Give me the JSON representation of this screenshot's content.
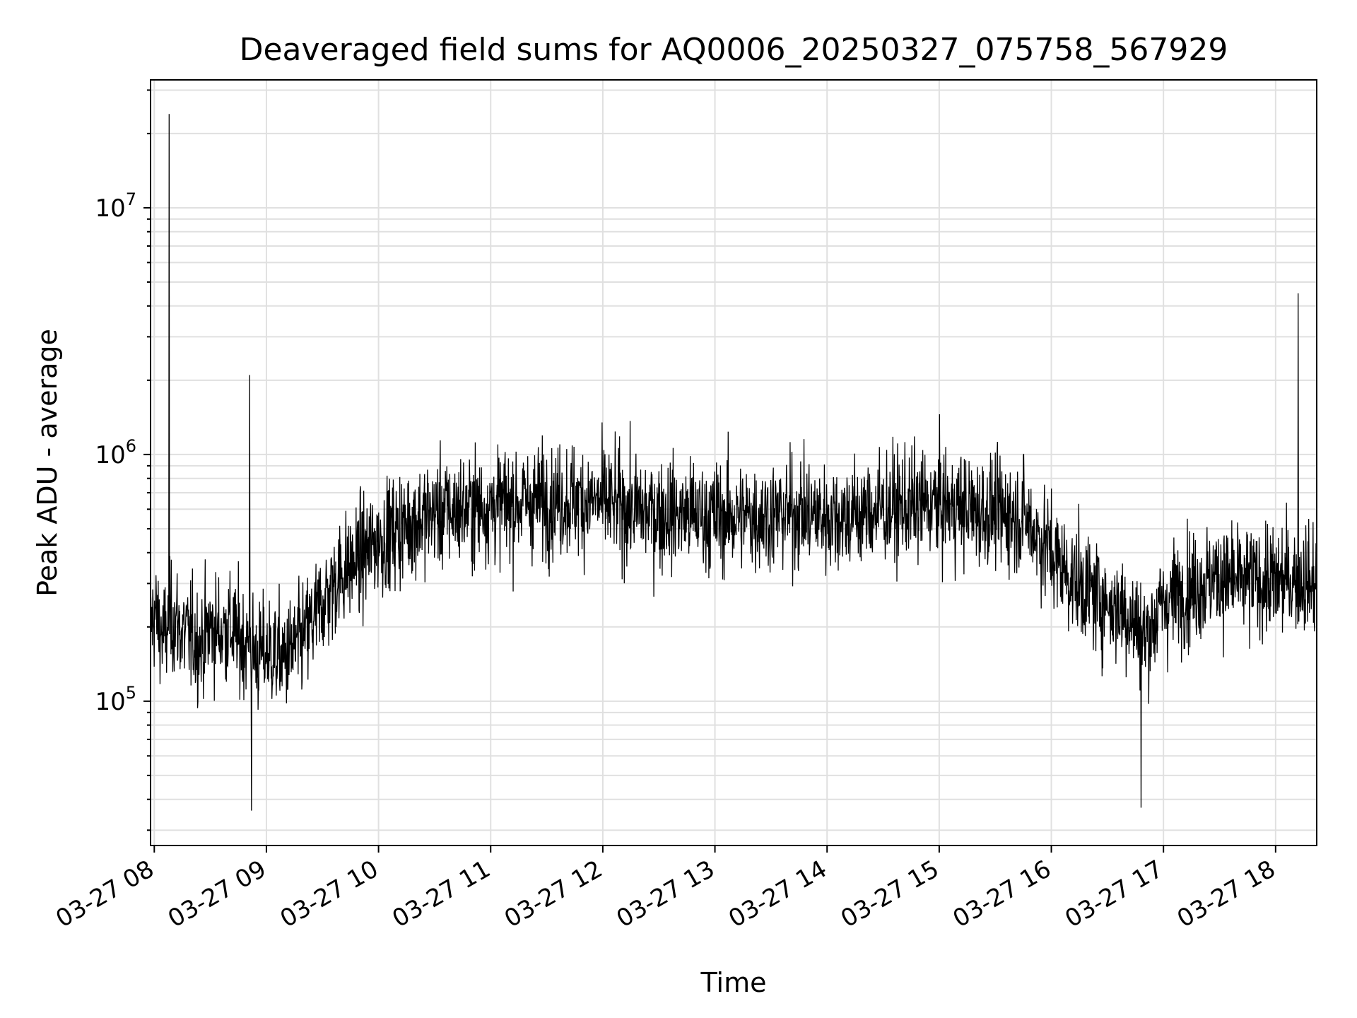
{
  "chart_data": {
    "type": "line",
    "title": "Deaveraged field sums for AQ0006_20250327_075758_567929",
    "xlabel": "Time",
    "ylabel": "Peak ADU - average",
    "x_axis": {
      "kind": "datetime",
      "range": [
        "2025-03-27 07:58",
        "2025-03-27 18:22"
      ],
      "ticks": [
        "03-27 08",
        "03-27 09",
        "03-27 10",
        "03-27 11",
        "03-27 12",
        "03-27 13",
        "03-27 14",
        "03-27 15",
        "03-27 16",
        "03-27 17",
        "03-27 18"
      ]
    },
    "y_axis": {
      "scale": "log",
      "range": [
        26000,
        33000000
      ],
      "ticks": [
        {
          "base": "10",
          "exp": "5",
          "value": 100000
        },
        {
          "base": "10",
          "exp": "6",
          "value": 1000000
        },
        {
          "base": "10",
          "exp": "7",
          "value": 10000000
        }
      ]
    },
    "grid": true,
    "line_color": "#000000",
    "series": [
      {
        "x": [
          "2025-03-27 07:58",
          "2025-03-27 08:00",
          "2025-03-27 08:05",
          "2025-03-27 08:10",
          "2025-03-27 08:15",
          "2025-03-27 08:20",
          "2025-03-27 08:25",
          "2025-03-27 08:30",
          "2025-03-27 08:35",
          "2025-03-27 08:40",
          "2025-03-27 08:45",
          "2025-03-27 08:50",
          "2025-03-27 08:55",
          "2025-03-27 09:00",
          "2025-03-27 09:10",
          "2025-03-27 09:20",
          "2025-03-27 09:30",
          "2025-03-27 09:40",
          "2025-03-27 09:50",
          "2025-03-27 10:00",
          "2025-03-27 10:15",
          "2025-03-27 10:30",
          "2025-03-27 10:45",
          "2025-03-27 11:00",
          "2025-03-27 11:15",
          "2025-03-27 11:30",
          "2025-03-27 11:45",
          "2025-03-27 12:00",
          "2025-03-27 12:15",
          "2025-03-27 12:30",
          "2025-03-27 12:45",
          "2025-03-27 13:00",
          "2025-03-27 13:15",
          "2025-03-27 13:30",
          "2025-03-27 13:45",
          "2025-03-27 14:00",
          "2025-03-27 14:15",
          "2025-03-27 14:30",
          "2025-03-27 14:45",
          "2025-03-27 15:00",
          "2025-03-27 15:15",
          "2025-03-27 15:30",
          "2025-03-27 15:45",
          "2025-03-27 16:00",
          "2025-03-27 16:10",
          "2025-03-27 16:20",
          "2025-03-27 16:30",
          "2025-03-27 16:40",
          "2025-03-27 16:50",
          "2025-03-27 17:00",
          "2025-03-27 17:10",
          "2025-03-27 17:20",
          "2025-03-27 17:30",
          "2025-03-27 17:40",
          "2025-03-27 17:50",
          "2025-03-27 18:00",
          "2025-03-27 18:10",
          "2025-03-27 18:20"
        ],
        "y": [
          200000,
          230000,
          180000,
          220000,
          190000,
          180000,
          170000,
          200000,
          190000,
          200000,
          180000,
          170000,
          150000,
          160000,
          150000,
          180000,
          250000,
          330000,
          380000,
          450000,
          520000,
          580000,
          600000,
          620000,
          640000,
          650000,
          660000,
          640000,
          600000,
          580000,
          570000,
          560000,
          560000,
          570000,
          580000,
          560000,
          570000,
          600000,
          620000,
          630000,
          600000,
          580000,
          560000,
          400000,
          320000,
          280000,
          250000,
          230000,
          180000,
          250000,
          280000,
          300000,
          320000,
          300000,
          310000,
          300000,
          320000,
          300000
        ],
        "spikes": [
          {
            "x": "2025-03-27 08:08",
            "y": 24000000
          },
          {
            "x": "2025-03-27 08:51",
            "y": 2100000
          },
          {
            "x": "2025-03-27 08:52",
            "y": 36000
          },
          {
            "x": "2025-03-27 16:48",
            "y": 37000
          },
          {
            "x": "2025-03-27 18:12",
            "y": 4500000
          }
        ]
      }
    ]
  }
}
